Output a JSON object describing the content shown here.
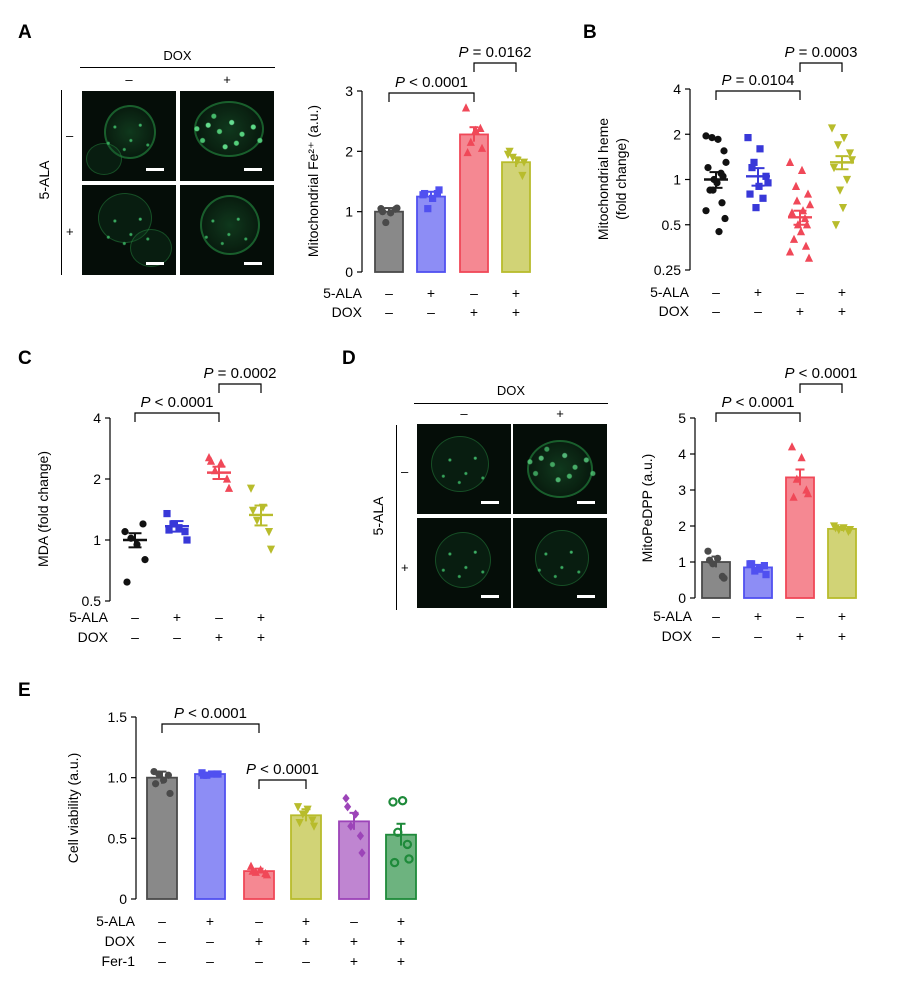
{
  "panels": {
    "A": {
      "label": "A",
      "micro": {
        "top_header": "DOX",
        "col_labels": [
          "–",
          "+"
        ],
        "side_header": "5-ALA",
        "row_labels": [
          "–",
          "+"
        ]
      }
    },
    "B": {
      "label": "B"
    },
    "C": {
      "label": "C"
    },
    "D": {
      "label": "D",
      "micro": {
        "top_header": "DOX",
        "col_labels": [
          "–",
          "+"
        ],
        "side_header": "5-ALA",
        "row_labels": [
          "–",
          "+"
        ]
      }
    },
    "E": {
      "label": "E"
    }
  },
  "chart_data": [
    {
      "id": "A",
      "type": "bar",
      "ylabel": "Mitochondrial Fe²⁺ (a.u.)",
      "ylim": [
        0,
        3
      ],
      "yticks": [
        "0",
        "1",
        "2",
        "3"
      ],
      "yscale": "linear",
      "groups": [
        "5-ALA –, DOX –",
        "5-ALA +, DOX –",
        "5-ALA –, DOX +",
        "5-ALA +, DOX +"
      ],
      "colors": [
        "#4a4a4a",
        "#5050f0",
        "#f04858",
        "#b8bc2c"
      ],
      "markers": [
        "circle",
        "square",
        "triangle",
        "triangle-down"
      ],
      "means": [
        1.0,
        1.25,
        2.28,
        1.82
      ],
      "errors": [
        0.06,
        0.08,
        0.12,
        0.08
      ],
      "points": [
        [
          1.05,
          0.98,
          0.82,
          1.04,
          1.06,
          1.0
        ],
        [
          1.28,
          1.22,
          1.05,
          1.3,
          1.36,
          1.3
        ],
        [
          2.72,
          2.35,
          2.15,
          2.38,
          2.05,
          1.98
        ],
        [
          1.95,
          1.85,
          1.9,
          1.6,
          1.82,
          2.0
        ]
      ],
      "brackets": [
        {
          "from": 0,
          "to": 2,
          "label": "P < 0.0001"
        },
        {
          "from": 2,
          "to": 3,
          "label": "P = 0.0162"
        }
      ],
      "conditions": [
        {
          "name": "5-ALA",
          "values": [
            "–",
            "+",
            "–",
            "+"
          ]
        },
        {
          "name": "DOX",
          "values": [
            "–",
            "–",
            "+",
            "+"
          ]
        }
      ]
    },
    {
      "id": "B",
      "type": "scatter",
      "ylabel": "Mitochondrial heme (fold change)",
      "ylim": [
        0.25,
        4
      ],
      "yticks": [
        "0.25",
        "0.5",
        "1",
        "2",
        "4"
      ],
      "yscale": "log2",
      "groups": [
        "5-ALA –, DOX –",
        "5-ALA +, DOX –",
        "5-ALA –, DOX +",
        "5-ALA +, DOX +"
      ],
      "colors": [
        "#111111",
        "#3838d8",
        "#f04858",
        "#b8bc2c"
      ],
      "markers": [
        "circle",
        "square",
        "triangle",
        "triangle-down"
      ],
      "means": [
        1.0,
        1.05,
        0.56,
        1.3
      ],
      "errors": [
        0.12,
        0.14,
        0.06,
        0.13
      ],
      "points": [
        [
          1.95,
          1.85,
          1.9,
          1.55,
          1.3,
          1.2,
          1.1,
          1.0,
          0.95,
          0.85,
          0.7,
          0.62,
          0.55,
          0.45,
          0.85,
          1.05
        ],
        [
          1.9,
          1.6,
          1.3,
          1.05,
          0.95,
          0.8,
          0.75,
          0.65,
          0.9,
          1.2
        ],
        [
          1.3,
          1.15,
          0.9,
          0.8,
          0.68,
          0.6,
          0.55,
          0.5,
          0.45,
          0.4,
          0.36,
          0.33,
          0.3,
          0.62,
          0.72,
          0.5
        ],
        [
          2.2,
          1.9,
          1.7,
          1.5,
          1.35,
          1.2,
          1.0,
          0.85,
          0.65,
          0.5
        ]
      ],
      "brackets": [
        {
          "from": 0,
          "to": 2,
          "label": "P = 0.0104"
        },
        {
          "from": 2,
          "to": 3,
          "label": "P = 0.0003"
        }
      ],
      "conditions": [
        {
          "name": "5-ALA",
          "values": [
            "–",
            "+",
            "–",
            "+"
          ]
        },
        {
          "name": "DOX",
          "values": [
            "–",
            "–",
            "+",
            "+"
          ]
        }
      ]
    },
    {
      "id": "C",
      "type": "scatter",
      "ylabel": "MDA (fold change)",
      "ylim": [
        0.5,
        4
      ],
      "yticks": [
        "0.5",
        "1",
        "2",
        "4"
      ],
      "yscale": "log2",
      "groups": [
        "5-ALA –, DOX –",
        "5-ALA +, DOX –",
        "5-ALA –, DOX +",
        "5-ALA +, DOX +"
      ],
      "colors": [
        "#111111",
        "#3838d8",
        "#f04858",
        "#b8bc2c"
      ],
      "markers": [
        "circle",
        "square",
        "triangle",
        "triangle-down"
      ],
      "means": [
        1.0,
        1.17,
        2.15,
        1.33
      ],
      "errors": [
        0.08,
        0.07,
        0.15,
        0.15
      ],
      "points": [
        [
          1.1,
          0.95,
          1.02,
          1.2,
          0.8,
          0.62
        ],
        [
          1.35,
          1.15,
          1.2,
          1.1,
          1.0,
          1.12
        ],
        [
          2.55,
          2.4,
          2.2,
          2.0,
          1.8,
          2.45
        ],
        [
          1.8,
          1.45,
          1.25,
          1.1,
          0.9,
          1.4
        ]
      ],
      "brackets": [
        {
          "from": 0,
          "to": 2,
          "label": "P < 0.0001"
        },
        {
          "from": 2,
          "to": 3,
          "label": "P = 0.0002"
        }
      ],
      "conditions": [
        {
          "name": "5-ALA",
          "values": [
            "–",
            "+",
            "–",
            "+"
          ]
        },
        {
          "name": "DOX",
          "values": [
            "–",
            "–",
            "+",
            "+"
          ]
        }
      ]
    },
    {
      "id": "D",
      "type": "bar",
      "ylabel": "MitoPeDPP (a.u.)",
      "ylim": [
        0,
        5
      ],
      "yticks": [
        "0",
        "1",
        "2",
        "3",
        "4",
        "5"
      ],
      "yscale": "linear",
      "groups": [
        "5-ALA –, DOX –",
        "5-ALA +, DOX –",
        "5-ALA –, DOX +",
        "5-ALA +, DOX +"
      ],
      "colors": [
        "#4a4a4a",
        "#5050f0",
        "#f04858",
        "#b8bc2c"
      ],
      "markers": [
        "circle",
        "square",
        "triangle",
        "triangle-down"
      ],
      "means": [
        1.0,
        0.85,
        3.35,
        1.92
      ],
      "errors": [
        0.15,
        0.07,
        0.22,
        0.06
      ],
      "points": [
        [
          1.3,
          1.1,
          0.95,
          0.6,
          0.55,
          1.05
        ],
        [
          0.95,
          0.8,
          0.75,
          0.9,
          0.65,
          0.95
        ],
        [
          4.2,
          3.9,
          3.3,
          3.0,
          2.9,
          2.8
        ],
        [
          2.0,
          1.95,
          1.9,
          1.85,
          1.9,
          1.95
        ]
      ],
      "brackets": [
        {
          "from": 0,
          "to": 2,
          "label": "P < 0.0001"
        },
        {
          "from": 2,
          "to": 3,
          "label": "P < 0.0001"
        }
      ],
      "conditions": [
        {
          "name": "5-ALA",
          "values": [
            "–",
            "+",
            "–",
            "+"
          ]
        },
        {
          "name": "DOX",
          "values": [
            "–",
            "–",
            "+",
            "+"
          ]
        }
      ]
    },
    {
      "id": "E",
      "type": "bar",
      "ylabel": "Cell viability (a.u.)",
      "ylim": [
        0,
        1.5
      ],
      "yticks": [
        "0",
        "0.5",
        "1.0",
        "1.5"
      ],
      "yscale": "linear",
      "groups": [
        "Control",
        "5-ALA",
        "DOX",
        "5-ALA + DOX",
        "DOX + Fer-1",
        "5-ALA + DOX + Fer-1"
      ],
      "colors": [
        "#4a4a4a",
        "#5050f0",
        "#f04858",
        "#b8bc2c",
        "#9c44b8",
        "#1e8a3a"
      ],
      "markers": [
        "circle",
        "square",
        "triangle",
        "triangle-down",
        "diamond",
        "open-circle"
      ],
      "means": [
        1.0,
        1.03,
        0.23,
        0.69,
        0.64,
        0.53
      ],
      "errors": [
        0.05,
        0.01,
        0.02,
        0.05,
        0.07,
        0.09
      ],
      "points": [
        [
          1.05,
          0.98,
          1.03,
          1.02,
          0.87,
          0.95
        ],
        [
          1.04,
          1.03,
          1.02,
          1.03,
          1.03,
          1.02
        ],
        [
          0.27,
          0.24,
          0.22,
          0.21,
          0.2,
          0.23
        ],
        [
          0.76,
          0.74,
          0.7,
          0.65,
          0.6,
          0.63
        ],
        [
          0.83,
          0.7,
          0.6,
          0.52,
          0.38,
          0.76
        ],
        [
          0.8,
          0.81,
          0.55,
          0.45,
          0.33,
          0.3
        ]
      ],
      "brackets": [
        {
          "from": 0,
          "to": 2,
          "label": "P < 0.0001"
        },
        {
          "from": 2,
          "to": 3,
          "label": "P < 0.0001"
        }
      ],
      "conditions": [
        {
          "name": "5-ALA",
          "values": [
            "–",
            "+",
            "–",
            "+",
            "–",
            "+"
          ]
        },
        {
          "name": "DOX",
          "values": [
            "–",
            "–",
            "+",
            "+",
            "+",
            "+"
          ]
        },
        {
          "name": "Fer-1",
          "values": [
            "–",
            "–",
            "–",
            "–",
            "+",
            "+"
          ]
        }
      ]
    }
  ]
}
